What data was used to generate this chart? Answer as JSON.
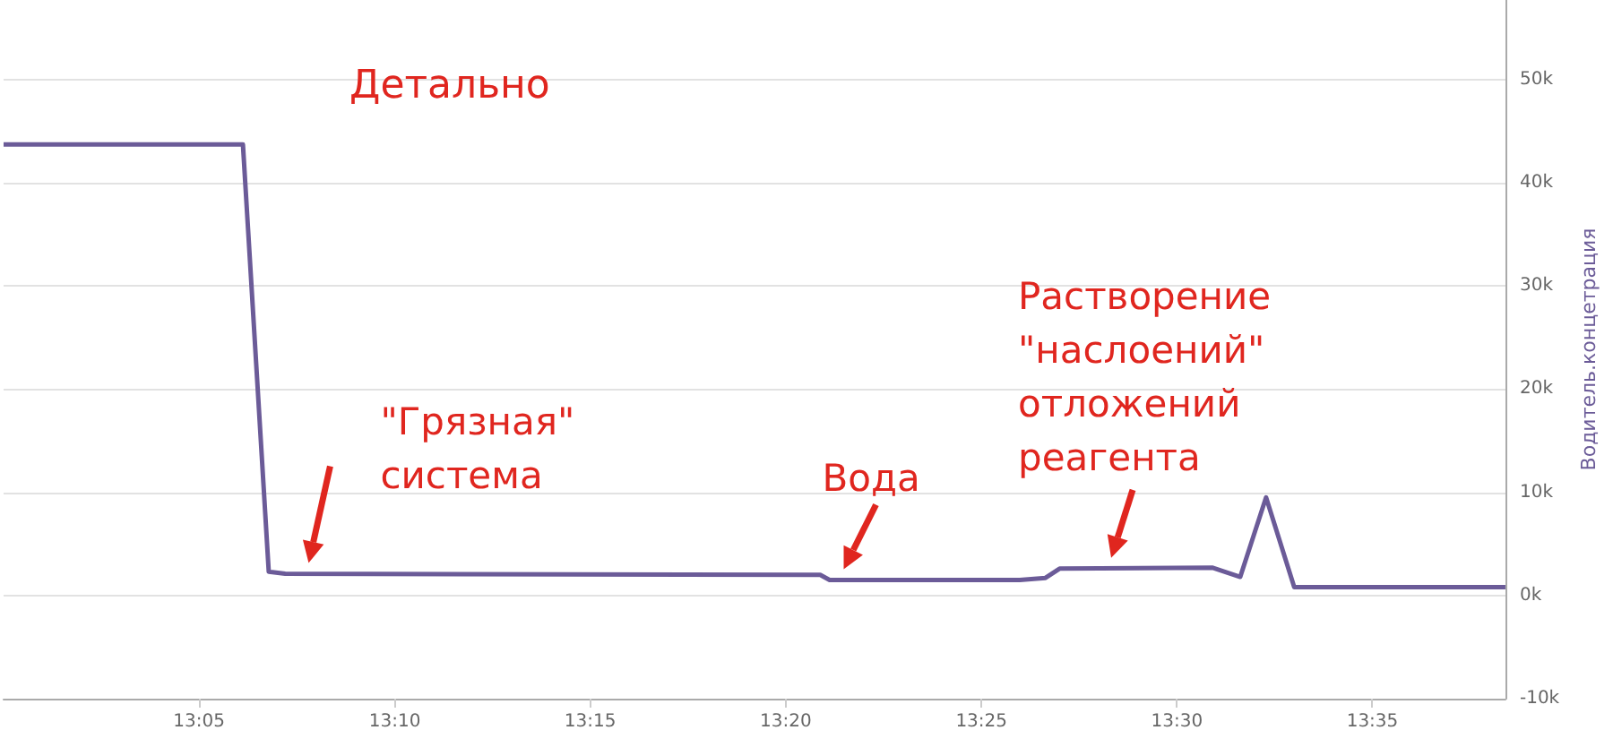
{
  "chart_data": {
    "type": "line",
    "title": "Детально",
    "ylabel": "Водитель.концетрация",
    "x": [
      13.0,
      13.102,
      13.113,
      13.12,
      13.348,
      13.352,
      13.433,
      13.444,
      13.45,
      13.515,
      13.527,
      13.538,
      13.55,
      13.64
    ],
    "series": [
      {
        "color": "#6b5b98",
        "values": [
          43700,
          43700,
          2300,
          2100,
          2000,
          1500,
          1500,
          1700,
          2600,
          2700,
          1800,
          9500,
          800,
          800
        ]
      }
    ],
    "xlim": [
      13.0,
      13.64
    ],
    "xticks": [
      {
        "value": 13.0833,
        "label": "13:05"
      },
      {
        "value": 13.1667,
        "label": "13:10"
      },
      {
        "value": 13.25,
        "label": "13:15"
      },
      {
        "value": 13.3333,
        "label": "13:20"
      },
      {
        "value": 13.4167,
        "label": "13:25"
      },
      {
        "value": 13.5,
        "label": "13:30"
      },
      {
        "value": 13.5833,
        "label": "13:35"
      }
    ],
    "ylim": [
      -10000,
      57700
    ],
    "yticks": [
      {
        "value": -10000,
        "label": "-10k"
      },
      {
        "value": 0,
        "label": "0k"
      },
      {
        "value": 10000,
        "label": "10k"
      },
      {
        "value": 20000,
        "label": "20k"
      },
      {
        "value": 30000,
        "label": "30k"
      },
      {
        "value": 40000,
        "label": "40k"
      },
      {
        "value": 50000,
        "label": "50k"
      }
    ],
    "grid": "y",
    "marker": "none",
    "line_style": "solid",
    "annotations": [
      {
        "text": "\"Грязная\"\nсистема",
        "x": 13.13,
        "y": 2100
      },
      {
        "text": "Вода",
        "x": 13.358,
        "y": 1500
      },
      {
        "text": "Растворение\n\"наслоений\"\nотложений\nреагента",
        "x": 13.472,
        "y": 2600
      }
    ]
  }
}
